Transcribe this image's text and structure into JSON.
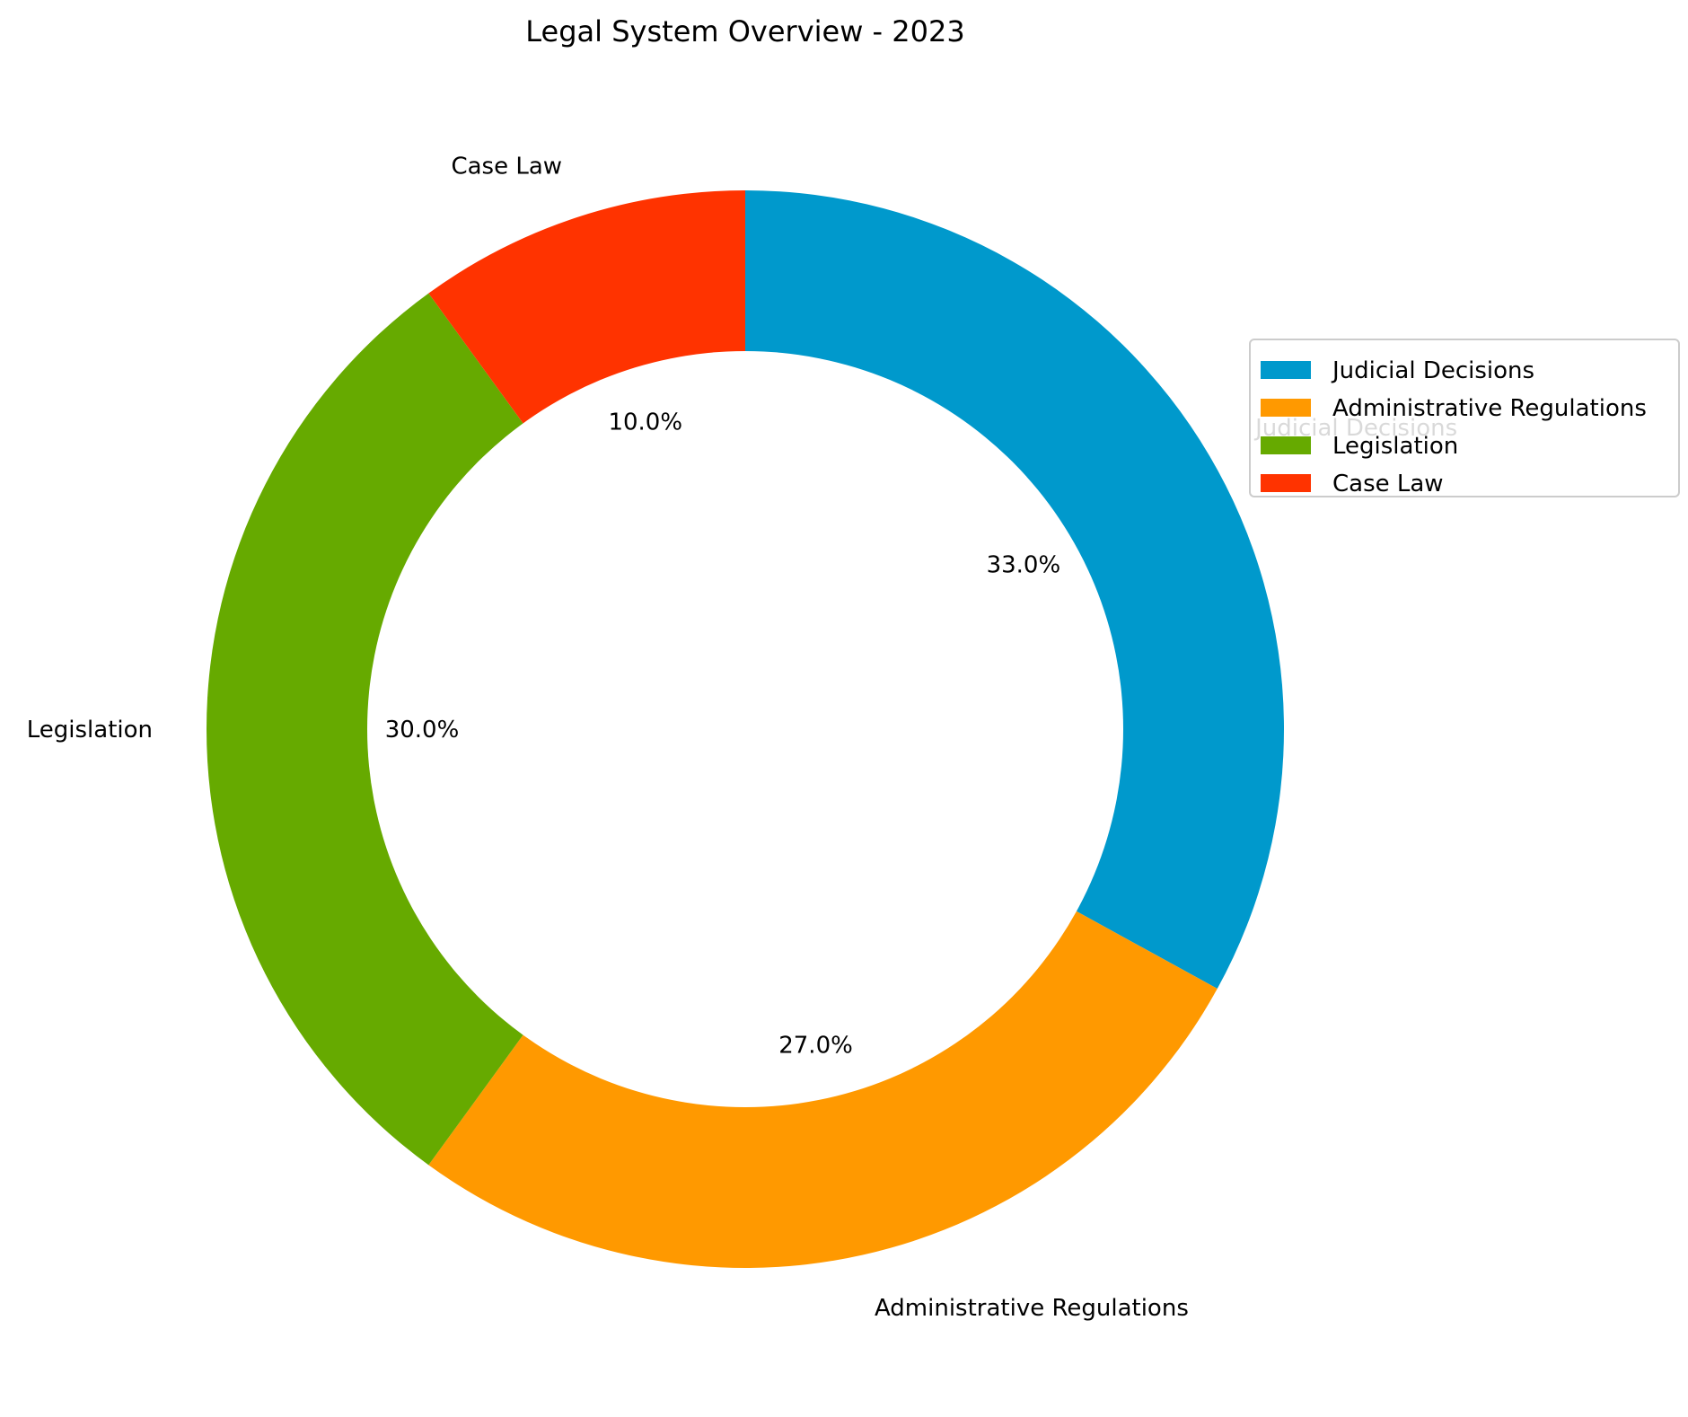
{
  "chart_data": {
    "type": "pie",
    "subtype": "donut",
    "title": "Legal System Overview - 2023",
    "categories": [
      "Judicial Decisions",
      "Administrative Regulations",
      "Legislation",
      "Case Law"
    ],
    "values": [
      33.0,
      27.0,
      30.0,
      10.0
    ],
    "value_labels": [
      "33.0%",
      "27.0%",
      "30.0%",
      "10.0%"
    ],
    "colors": [
      "#0099cc",
      "#ff9900",
      "#66aa00",
      "#ff3300"
    ],
    "start_angle": "top",
    "direction": "clockwise",
    "legend": {
      "placement": "right",
      "entries": [
        "Judicial Decisions",
        "Administrative Regulations",
        "Legislation",
        "Case Law"
      ]
    }
  }
}
